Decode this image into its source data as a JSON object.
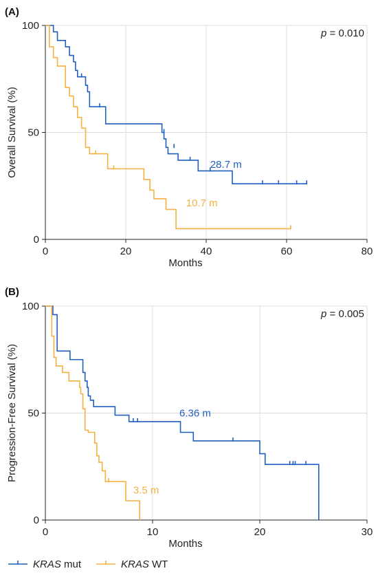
{
  "colors": {
    "mut": "#1f5fbf",
    "wt": "#f5b042"
  },
  "legend": [
    {
      "gene": "KRAS",
      "label": " mut",
      "color": "#1f5fbf"
    },
    {
      "gene": "KRAS",
      "label": " WT",
      "color": "#f5b042"
    }
  ],
  "chart_data": [
    {
      "type": "line",
      "panel": "(A)",
      "xlabel": "Months",
      "ylabel": "Overall Survival (%)",
      "xlim": [
        0,
        80
      ],
      "ylim": [
        0,
        100
      ],
      "xticks": [
        0,
        20,
        40,
        60,
        80
      ],
      "yticks": [
        0,
        50,
        100
      ],
      "grid": true,
      "p_text": "p = 0.010",
      "series": [
        {
          "key": "mut",
          "x": [
            0,
            2,
            3,
            5,
            6,
            7,
            7.5,
            8,
            9,
            10,
            10.5,
            11,
            15,
            29,
            29.5,
            30,
            30.5,
            32,
            33,
            38,
            46.5,
            65
          ],
          "y": [
            100,
            97,
            93,
            90,
            86,
            83,
            79,
            76,
            76,
            72,
            69,
            62,
            54,
            50,
            47,
            43,
            40,
            40,
            37,
            32,
            26,
            26
          ],
          "censor_x": [
            9,
            13.5,
            29.5,
            32,
            36,
            41,
            54,
            58,
            62.5,
            65
          ],
          "censor_y": [
            76,
            62,
            50,
            43,
            37,
            32,
            26,
            26,
            26,
            26
          ],
          "median_label": "28.7 m",
          "median_at": [
            41,
            35
          ]
        },
        {
          "key": "wt",
          "x": [
            0,
            1,
            2,
            3,
            5,
            6,
            7,
            8,
            9,
            10,
            11,
            15.5,
            24.5,
            26,
            27,
            30,
            32.5,
            61
          ],
          "y": [
            100,
            90,
            85,
            81,
            71,
            67,
            62,
            57,
            52,
            43,
            40,
            33,
            28,
            23,
            19,
            14,
            5,
            5
          ],
          "censor_x": [
            12.5,
            17,
            61
          ],
          "censor_y": [
            40,
            33,
            5
          ],
          "median_label": "10.7 m",
          "median_at": [
            35,
            17
          ]
        }
      ]
    },
    {
      "type": "line",
      "panel": "(B)",
      "xlabel": "Months",
      "ylabel": "Progression-Free Survival (%)",
      "xlim": [
        0,
        30
      ],
      "ylim": [
        0,
        100
      ],
      "xticks": [
        0,
        10,
        20,
        30
      ],
      "yticks": [
        0,
        50,
        100
      ],
      "grid": true,
      "p_text": "p = 0.005",
      "series": [
        {
          "key": "mut",
          "x": [
            0,
            0.7,
            1.1,
            2.3,
            3.5,
            3.7,
            3.9,
            4.0,
            4.2,
            4.5,
            6.5,
            7.8,
            12.6,
            13.8,
            20.0,
            20.5,
            25.5,
            25.5
          ],
          "y": [
            100,
            96,
            79,
            75,
            69,
            65,
            62,
            58,
            56,
            53,
            49,
            46,
            41,
            37,
            31,
            26,
            26,
            0
          ],
          "censor_x": [
            8.2,
            8.6,
            17.5,
            22.8,
            23.1,
            23.3,
            24.3
          ],
          "censor_y": [
            46,
            46,
            37,
            26,
            26,
            26,
            26
          ],
          "median_label": "6.36 m",
          "median_at": [
            12.5,
            50
          ]
        },
        {
          "key": "wt",
          "x": [
            0,
            0.6,
            0.8,
            1.0,
            1.6,
            2.2,
            3.2,
            3.3,
            3.5,
            3.7,
            4.0,
            4.6,
            4.8,
            5.0,
            5.3,
            5.6,
            7.5,
            8.8
          ],
          "y": [
            100,
            86,
            76,
            72,
            69,
            65,
            62,
            59,
            52,
            42,
            41,
            36,
            30,
            27,
            23,
            18,
            9,
            0
          ],
          "censor_x": [
            5.9
          ],
          "censor_y": [
            18
          ],
          "median_label": "3.5 m",
          "median_at": [
            8.2,
            14
          ]
        }
      ]
    }
  ]
}
